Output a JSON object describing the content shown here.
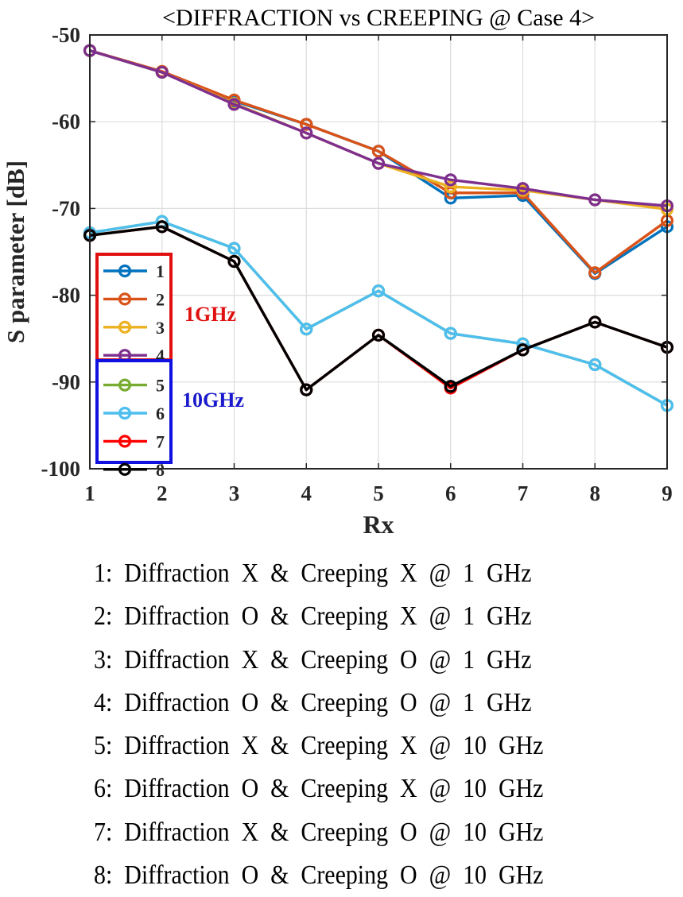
{
  "chart_data": {
    "type": "line",
    "title": "<DIFFRACTION vs CREEPING @ Case 4>",
    "xlabel": "Rx",
    "ylabel": "S parameter [dB]",
    "x": [
      1,
      2,
      3,
      4,
      5,
      6,
      7,
      8,
      9
    ],
    "xlim": [
      1,
      9
    ],
    "ylim": [
      -100,
      -50
    ],
    "xticks": [
      "1",
      "2",
      "3",
      "4",
      "5",
      "6",
      "7",
      "8",
      "9"
    ],
    "yticks": [
      "-50",
      "-60",
      "-70",
      "-80",
      "-90",
      "-100"
    ],
    "grid": true,
    "legend_position": "left-middle",
    "legend_groups": [
      {
        "label": "1GHz",
        "label_color": "#e01010",
        "box_color": "#e01010",
        "series_index": [
          0,
          1,
          2,
          3
        ]
      },
      {
        "label": "10GHz",
        "label_color": "#1a1acc",
        "box_color": "#1010e0",
        "series_index": [
          4,
          5,
          6,
          7
        ]
      }
    ],
    "series": [
      {
        "name": "1",
        "color": "#0072BD",
        "values": [
          -51.8,
          -54.3,
          -57.6,
          -60.3,
          -63.4,
          -68.8,
          -68.5,
          -77.5,
          -72.1
        ]
      },
      {
        "name": "2",
        "color": "#D95319",
        "values": [
          -51.8,
          -54.2,
          -57.5,
          -60.3,
          -63.4,
          -68.2,
          -68.2,
          -77.4,
          -71.4
        ]
      },
      {
        "name": "3",
        "color": "#EDB120",
        "values": [
          -51.8,
          -54.3,
          -57.9,
          -61.3,
          -64.8,
          -67.5,
          -67.9,
          -69.0,
          -70.1
        ]
      },
      {
        "name": "4",
        "color": "#7E2F8E",
        "values": [
          -51.8,
          -54.3,
          -58.0,
          -61.3,
          -64.8,
          -66.7,
          -67.7,
          -69.0,
          -69.7
        ]
      },
      {
        "name": "5",
        "color": "#77AC30",
        "values": [
          -72.8,
          -71.5,
          -74.6,
          -83.9,
          -79.5,
          -84.4,
          -85.6,
          -88.0,
          -92.7
        ]
      },
      {
        "name": "6",
        "color": "#4DBEEE",
        "values": [
          -72.8,
          -71.5,
          -74.6,
          -83.9,
          -79.5,
          -84.4,
          -85.6,
          -88.0,
          -92.7
        ]
      },
      {
        "name": "7",
        "color": "#FF0000",
        "values": [
          -73.1,
          -72.1,
          -76.1,
          -90.9,
          -84.6,
          -90.7,
          -86.3,
          -83.1,
          -86.0
        ]
      },
      {
        "name": "8",
        "color": "#000000",
        "values": [
          -73.1,
          -72.1,
          -76.1,
          -90.9,
          -84.6,
          -90.5,
          -86.3,
          -83.1,
          -86.0
        ]
      }
    ]
  },
  "case_list": [
    "1:  Diffraction  X  &  Creeping  X  @  1  GHz",
    "2:  Diffraction  O  &  Creeping  X  @  1  GHz",
    "3:  Diffraction  X  &  Creeping  O  @  1  GHz",
    "4:  Diffraction  O  &  Creeping  O  @  1  GHz",
    "5:  Diffraction  X  &  Creeping  X  @  10  GHz",
    "6:  Diffraction  O  &  Creeping  X  @  10  GHz",
    "7:  Diffraction  X  &  Creeping  O  @  10  GHz",
    "8:  Diffraction  O  &  Creeping  O  @  10  GHz"
  ]
}
